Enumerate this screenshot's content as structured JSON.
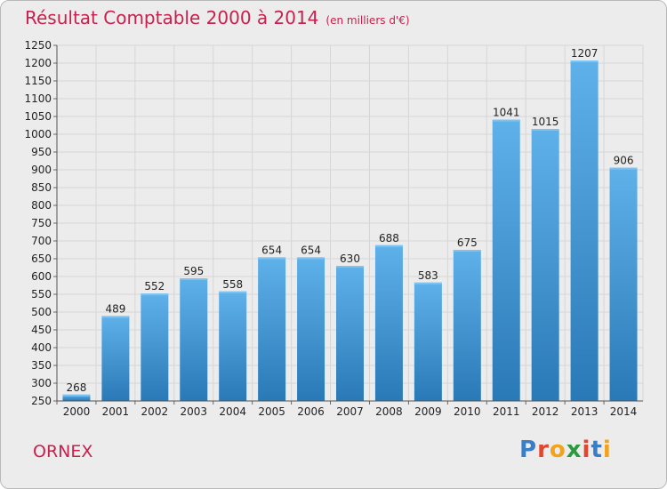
{
  "header": {
    "title": "Résultat Comptable 2000 à 2014",
    "unit_note": "(en milliers d'€)"
  },
  "footer": {
    "commune": "ORNEX",
    "logo_text": "Proxiti"
  },
  "colors": {
    "title": "#c8204d",
    "bar_top": "#5fb1ea",
    "bar_bottom": "#2a79b7",
    "background": "#ececec"
  },
  "chart_data": {
    "type": "bar",
    "title": "Résultat Comptable 2000 à 2014",
    "subtitle": "(en milliers d'€)",
    "xlabel": "",
    "ylabel": "",
    "categories": [
      "2000",
      "2001",
      "2002",
      "2003",
      "2004",
      "2005",
      "2006",
      "2007",
      "2008",
      "2009",
      "2010",
      "2011",
      "2012",
      "2013",
      "2014"
    ],
    "values": [
      268,
      489,
      552,
      595,
      558,
      654,
      654,
      630,
      688,
      583,
      675,
      1041,
      1015,
      1207,
      906
    ],
    "ylim": [
      250,
      1250
    ],
    "yticks": [
      250,
      300,
      350,
      400,
      450,
      500,
      550,
      600,
      650,
      700,
      750,
      800,
      850,
      900,
      950,
      1000,
      1050,
      1100,
      1150,
      1200,
      1250
    ],
    "grid": true,
    "data_labels": true
  }
}
